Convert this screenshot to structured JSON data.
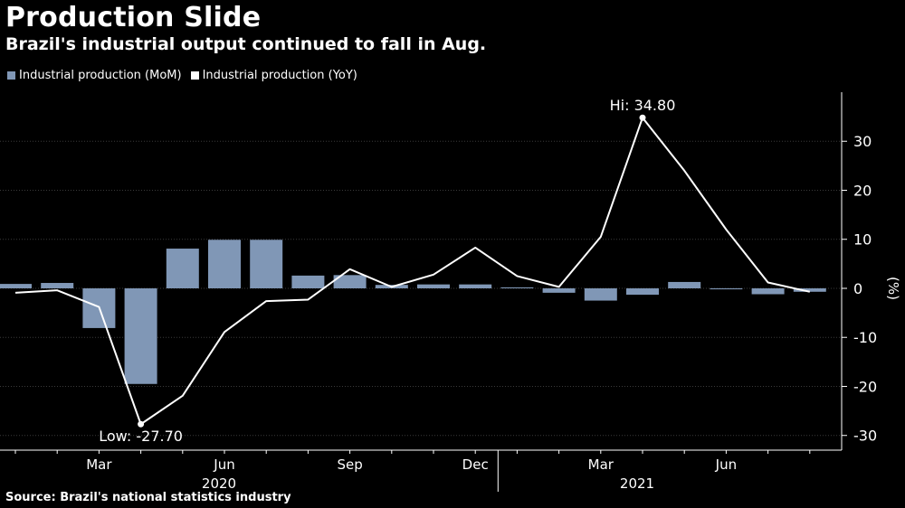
{
  "title": "Production Slide",
  "subtitle": "Brazil's industrial output continued to fall in Aug.",
  "source": "Source: Brazil's national statistics industry",
  "chart_data": {
    "type": "bar+line",
    "ylabel": "(%)",
    "ylim": [
      -33,
      40
    ],
    "yticks": [
      -30,
      -20,
      -10,
      0,
      10,
      20,
      30
    ],
    "grid": true,
    "legend_position": "top-left",
    "months": [
      "2020-01",
      "2020-02",
      "2020-03",
      "2020-04",
      "2020-05",
      "2020-06",
      "2020-07",
      "2020-08",
      "2020-09",
      "2020-10",
      "2020-11",
      "2020-12",
      "2021-01",
      "2021-02",
      "2021-03",
      "2021-04",
      "2021-05",
      "2021-06",
      "2021-07",
      "2021-08"
    ],
    "x_tick_labels": [
      {
        "label": "Mar",
        "month": "2020-03"
      },
      {
        "label": "Jun",
        "month": "2020-06"
      },
      {
        "label": "Sep",
        "month": "2020-09"
      },
      {
        "label": "Dec",
        "month": "2020-12"
      },
      {
        "label": "Mar",
        "month": "2021-03"
      },
      {
        "label": "Jun",
        "month": "2021-06"
      }
    ],
    "year_labels": [
      {
        "label": "2020",
        "month": "2020-06"
      },
      {
        "label": "2021",
        "month": "2021-04"
      }
    ],
    "series": [
      {
        "name": "Industrial production (MoM)",
        "type": "bar",
        "color": "#8097b6",
        "values": [
          0.9,
          1.1,
          -8.1,
          -19.5,
          8.1,
          9.9,
          9.9,
          2.6,
          2.7,
          0.7,
          0.8,
          0.8,
          0.2,
          -0.9,
          -2.5,
          -1.3,
          1.3,
          -0.2,
          -1.2,
          -0.7
        ]
      },
      {
        "name": "Industrial production (YoY)",
        "type": "line",
        "color": "#ffffff",
        "values": [
          -0.9,
          -0.4,
          -3.8,
          -27.7,
          -21.9,
          -8.9,
          -2.6,
          -2.3,
          3.9,
          0.3,
          2.8,
          8.3,
          2.5,
          0.3,
          10.5,
          34.8,
          24.0,
          12.0,
          1.2,
          -0.7
        ]
      }
    ],
    "annotations": [
      {
        "text": "Hi: 34.80",
        "month": "2021-04",
        "value": 34.8
      },
      {
        "text": "Low: -27.70",
        "month": "2020-04",
        "value": -27.7
      }
    ]
  }
}
